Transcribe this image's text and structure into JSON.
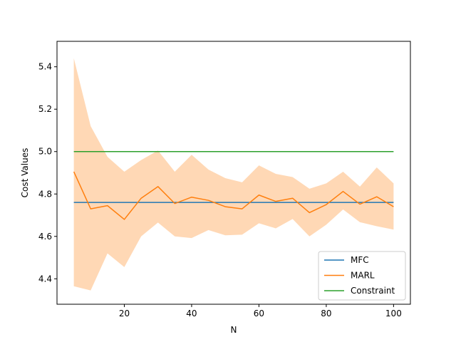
{
  "chart_data": {
    "type": "line",
    "xlabel": "N",
    "ylabel": "Cost Values",
    "xlim": [
      0,
      105
    ],
    "ylim": [
      4.28,
      5.52
    ],
    "xticks": [
      20,
      40,
      60,
      80,
      100
    ],
    "yticks": [
      4.4,
      4.6,
      4.8,
      5.0,
      5.2,
      5.4
    ],
    "legend_position": "lower-right",
    "series": [
      {
        "name": "MFC",
        "color": "#1f77b4",
        "x": [
          5,
          100
        ],
        "y": [
          4.76,
          4.76
        ]
      },
      {
        "name": "MARL",
        "color": "#ff7f0e",
        "band_color": "#ffd8b5",
        "x": [
          5,
          10,
          15,
          20,
          25,
          30,
          35,
          40,
          45,
          50,
          55,
          60,
          65,
          70,
          75,
          80,
          85,
          90,
          95,
          100
        ],
        "y": [
          4.905,
          4.73,
          4.745,
          4.68,
          4.78,
          4.835,
          4.755,
          4.785,
          4.77,
          4.74,
          4.73,
          4.795,
          4.765,
          4.78,
          4.712,
          4.75,
          4.812,
          4.752,
          4.787,
          4.74
        ],
        "upper": [
          5.44,
          5.12,
          4.975,
          4.905,
          4.96,
          5.005,
          4.905,
          4.985,
          4.915,
          4.875,
          4.855,
          4.935,
          4.895,
          4.88,
          4.825,
          4.85,
          4.905,
          4.835,
          4.925,
          4.85
        ],
        "lower": [
          4.365,
          4.345,
          4.52,
          4.455,
          4.6,
          4.665,
          4.6,
          4.592,
          4.63,
          4.605,
          4.608,
          4.662,
          4.638,
          4.682,
          4.6,
          4.655,
          4.727,
          4.667,
          4.648,
          4.632
        ]
      },
      {
        "name": "Constraint",
        "color": "#2ca02c",
        "x": [
          5,
          100
        ],
        "y": [
          5.0,
          5.0
        ]
      }
    ]
  }
}
